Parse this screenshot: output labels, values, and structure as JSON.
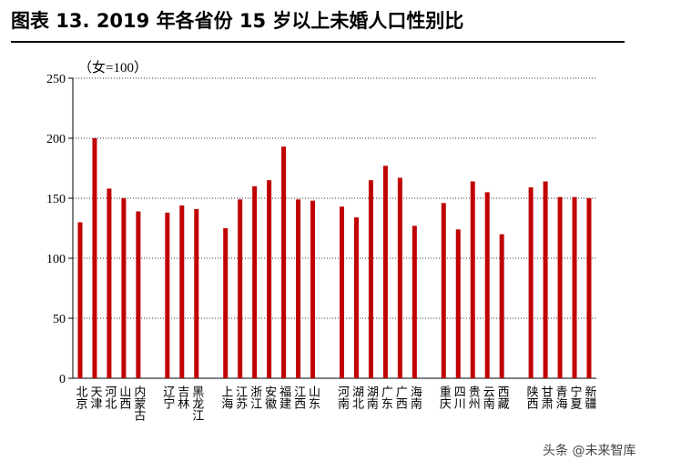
{
  "chart_data": {
    "type": "bar",
    "title": "图表 13. 2019 年各省份 15 岁以上未婚人口性别比",
    "annotation": "（女=100）",
    "watermark": "头条 @未来智库",
    "categories": [
      "北京",
      "天津",
      "河北",
      "山西",
      "内蒙古",
      null,
      "辽宁",
      "吉林",
      "黑龙江",
      null,
      "上海",
      "江苏",
      "浙江",
      "安徽",
      "福建",
      "江西",
      "山东",
      null,
      "河南",
      "湖北",
      "湖南",
      "广东",
      "广西",
      "海南",
      null,
      "重庆",
      "四川",
      "贵州",
      "云南",
      "西藏",
      null,
      "陕西",
      "甘肃",
      "青海",
      "宁夏",
      "新疆"
    ],
    "values": [
      130,
      200,
      158,
      150,
      139,
      null,
      138,
      144,
      141,
      null,
      125,
      149,
      160,
      165,
      193,
      149,
      148,
      null,
      143,
      134,
      165,
      177,
      167,
      127,
      null,
      146,
      124,
      164,
      155,
      120,
      null,
      159,
      164,
      151,
      151,
      150
    ],
    "color": "#c00000",
    "ylim": [
      0,
      250
    ],
    "yticks": [
      0,
      50,
      100,
      150,
      200,
      250
    ],
    "grid": true
  }
}
